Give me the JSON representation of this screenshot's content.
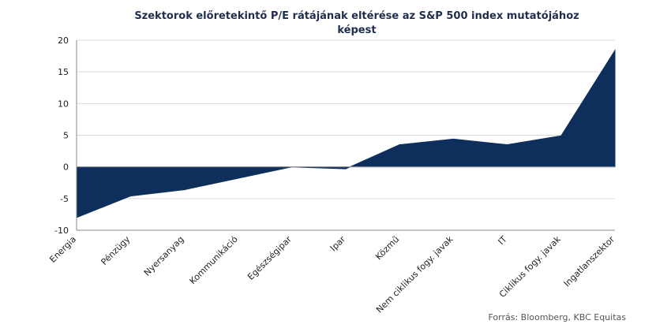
{
  "chart_data": {
    "type": "area",
    "title_lines": [
      "Szektorok előretekintő P/E rátájának eltérése az S&P 500 index mutatójához",
      "képest"
    ],
    "categories": [
      "Energia",
      "Pénzügy",
      "Nyersanyag",
      "Kommunikáció",
      "Egészségipar",
      "Ipar",
      "Közmű",
      "Nem ciklikus fogy. javak",
      "IT",
      "Ciklikus fogy. javak",
      "Ingatlanszektor"
    ],
    "values": [
      -8.0,
      -4.6,
      -3.6,
      -1.8,
      0.0,
      -0.3,
      3.5,
      4.4,
      3.5,
      4.9,
      18.4
    ],
    "ylim": [
      -10,
      20
    ],
    "yticks": [
      "20",
      "15",
      "10",
      "5",
      "0",
      "-5",
      "-10"
    ],
    "grid": true,
    "legend": "none",
    "fill_color": "#0e2f5c",
    "source": "Forrás: Bloomberg,  KBC Equitas"
  }
}
